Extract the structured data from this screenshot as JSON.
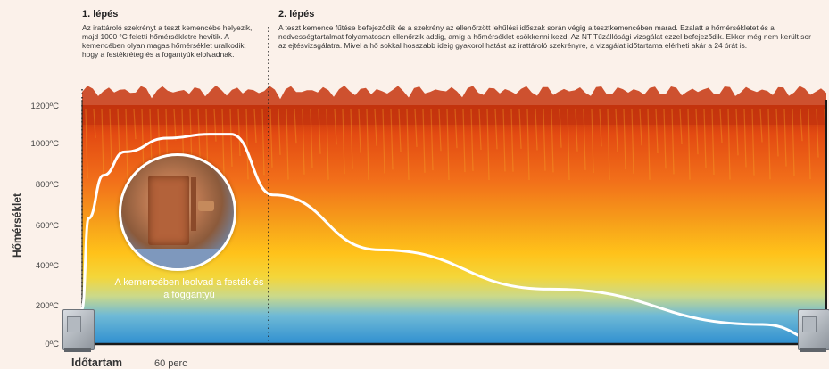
{
  "steps": [
    {
      "title": "1. lépés",
      "text": "Az irattároló szekrényt a teszt kemencébe helyezik, majd 1000 °C feletti hőmérsékletre hevítik. A kemencében olyan magas hőmérséklet uralkodik, hogy a festékréteg és a fogantyúk elolvadnak."
    },
    {
      "title": "2. lépés",
      "text": "A teszt kemence fűtése befejeződik és a szekrény az ellenőrzött lehűlési időszak során végig a tesztkemencében marad. Ezalatt a hőmérsékletet és a nedvességtartalmat folyamatosan ellenőrzik addig, amíg a hőmérséklet csökkenni kezd. Az NT Tűzállósági vizsgálat ezzel befejeződik. Ekkor még nem került sor az ejtésvizsgálatra. Mivel a hő sokkal hosszabb ideig gyakorol hatást az irattároló szekrényre, a vizsgálat időtartama elérheti akár a 24 órát is."
    }
  ],
  "inset_caption": "A kemencében leolvad a festék és a foggantyú",
  "inset_icon": "melted-cabinet-photo",
  "cabinet_icon": "safe-cabinet-icon",
  "chart_data": {
    "type": "line",
    "ylabel": "Hőmérséklet",
    "xlabel": "Időtartam",
    "x_marker_label": "60 perc",
    "ylim": [
      0,
      1200
    ],
    "yticks": [
      "0ºC",
      "200ºC",
      "400ºC",
      "600ºC",
      "800ºC",
      "1000ºC",
      "1200ºC"
    ],
    "grid": false,
    "series": [
      {
        "values": [
          {
            "x": 0,
            "y": 180
          },
          {
            "x": 3,
            "y": 640
          },
          {
            "x": 10,
            "y": 860
          },
          {
            "x": 20,
            "y": 980
          },
          {
            "x": 40,
            "y": 1050
          },
          {
            "x": 60,
            "y": 1070
          },
          {
            "x": 70,
            "y": 1070
          },
          {
            "x": 90,
            "y": 760
          },
          {
            "x": 140,
            "y": 480
          },
          {
            "x": 220,
            "y": 280
          },
          {
            "x": 320,
            "y": 100
          },
          {
            "x": 350,
            "y": 10
          }
        ]
      }
    ],
    "colors": {
      "line": "#ffffff",
      "hot": "#d83a12",
      "warm": "#f7a21a",
      "cool": "#3fa6d8"
    }
  }
}
